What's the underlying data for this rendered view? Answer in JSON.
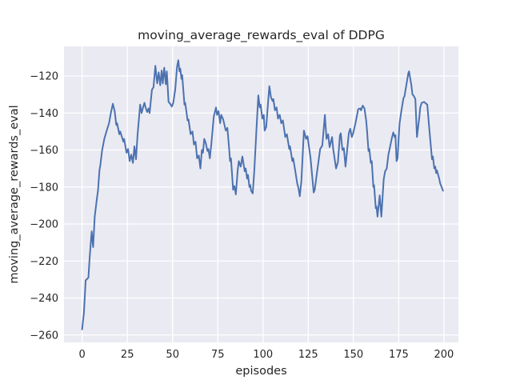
{
  "figure": {
    "background": "#ffffff",
    "plot_background": "#eaeaf2",
    "grid_color": "#ffffff",
    "text_color": "#262626"
  },
  "chart_data": {
    "type": "line",
    "title": "moving_average_rewards_eval of DDPG",
    "xlabel": "episodes",
    "ylabel": "moving_average_rewards_eval",
    "legend": null,
    "grid": true,
    "xlim": [
      -10,
      208
    ],
    "ylim": [
      -264,
      -104
    ],
    "x_ticks": [
      0,
      25,
      50,
      75,
      100,
      125,
      150,
      175,
      200
    ],
    "x_tick_labels": [
      "0",
      "25",
      "50",
      "75",
      "100",
      "125",
      "150",
      "175",
      "200"
    ],
    "y_ticks": [
      -120,
      -140,
      -160,
      -180,
      -200,
      -220,
      -240,
      -260
    ],
    "y_tick_labels": [
      "−120",
      "−140",
      "−160",
      "−180",
      "−200",
      "−220",
      "−240",
      "−260"
    ],
    "series": [
      {
        "name": "moving_average_rewards_eval",
        "color": "#4c72b0",
        "points": [
          [
            0,
            -257
          ],
          [
            1,
            -248
          ],
          [
            2,
            -230.5
          ],
          [
            3.5,
            -229
          ],
          [
            4.2,
            -218
          ],
          [
            5.3,
            -204
          ],
          [
            6.1,
            -212.5
          ],
          [
            7,
            -196
          ],
          [
            8.2,
            -186
          ],
          [
            8.8,
            -182
          ],
          [
            9.6,
            -171
          ],
          [
            10.1,
            -168
          ],
          [
            11,
            -160.5
          ],
          [
            12.3,
            -154
          ],
          [
            13.6,
            -149.5
          ],
          [
            14.9,
            -145.5
          ],
          [
            16,
            -139.5
          ],
          [
            17,
            -135
          ],
          [
            18,
            -139
          ],
          [
            18.9,
            -146.5
          ],
          [
            19.3,
            -145.5
          ],
          [
            20.6,
            -151.5
          ],
          [
            21.1,
            -150
          ],
          [
            22.8,
            -155.5
          ],
          [
            23.2,
            -154
          ],
          [
            24.6,
            -161.5
          ],
          [
            25.4,
            -159.5
          ],
          [
            26.3,
            -166
          ],
          [
            27.2,
            -162.5
          ],
          [
            28.1,
            -167
          ],
          [
            28.9,
            -158
          ],
          [
            29.8,
            -165
          ],
          [
            30.7,
            -151.5
          ],
          [
            31.6,
            -141
          ],
          [
            32.1,
            -135.5
          ],
          [
            32.9,
            -140
          ],
          [
            33.8,
            -136.5
          ],
          [
            34.5,
            -134.5
          ],
          [
            35.1,
            -137
          ],
          [
            36,
            -139.5
          ],
          [
            36.8,
            -137.5
          ],
          [
            37.3,
            -140
          ],
          [
            38.6,
            -127.5
          ],
          [
            39.5,
            -126
          ],
          [
            40.5,
            -114.5
          ],
          [
            41.5,
            -124
          ],
          [
            42.3,
            -118
          ],
          [
            43.2,
            -125
          ],
          [
            44,
            -117
          ],
          [
            44.6,
            -124
          ],
          [
            45.4,
            -115.5
          ],
          [
            46.3,
            -124.5
          ],
          [
            46.8,
            -117.5
          ],
          [
            47.8,
            -134
          ],
          [
            48.7,
            -135
          ],
          [
            49.6,
            -136.5
          ],
          [
            50.4,
            -134.5
          ],
          [
            51.5,
            -127
          ],
          [
            52.5,
            -115
          ],
          [
            53.2,
            -111.5
          ],
          [
            53.8,
            -117.5
          ],
          [
            54.3,
            -116
          ],
          [
            54.9,
            -121.5
          ],
          [
            55.3,
            -119.5
          ],
          [
            56.6,
            -135.5
          ],
          [
            57,
            -134.5
          ],
          [
            58.3,
            -144
          ],
          [
            58.8,
            -143.5
          ],
          [
            60,
            -151.5
          ],
          [
            61,
            -150
          ],
          [
            61.8,
            -157
          ],
          [
            62.7,
            -155.5
          ],
          [
            63.6,
            -164.5
          ],
          [
            64.5,
            -163
          ],
          [
            65.4,
            -170
          ],
          [
            66.2,
            -160
          ],
          [
            66.8,
            -161.5
          ],
          [
            67.5,
            -154
          ],
          [
            68.3,
            -156
          ],
          [
            69.3,
            -160.5
          ],
          [
            69.8,
            -159.5
          ],
          [
            70.6,
            -164.5
          ],
          [
            71.5,
            -156
          ],
          [
            72.8,
            -142
          ],
          [
            74,
            -137
          ],
          [
            74.6,
            -141
          ],
          [
            75.4,
            -139
          ],
          [
            76.3,
            -145.5
          ],
          [
            76.9,
            -141
          ],
          [
            78,
            -143.5
          ],
          [
            79.4,
            -149.5
          ],
          [
            80.3,
            -148
          ],
          [
            81.2,
            -158
          ],
          [
            81.8,
            -166
          ],
          [
            82.3,
            -164.5
          ],
          [
            83.5,
            -181.5
          ],
          [
            84.2,
            -179.5
          ],
          [
            85,
            -184
          ],
          [
            86,
            -171
          ],
          [
            86.6,
            -166
          ],
          [
            87.7,
            -169
          ],
          [
            88.6,
            -163.5
          ],
          [
            89.9,
            -171.5
          ],
          [
            90.4,
            -170
          ],
          [
            91.2,
            -175.5
          ],
          [
            91.7,
            -173.5
          ],
          [
            92.5,
            -180
          ],
          [
            93,
            -179
          ],
          [
            93.4,
            -182
          ],
          [
            94.3,
            -183.5
          ],
          [
            95.2,
            -171
          ],
          [
            96.5,
            -147
          ],
          [
            97.4,
            -130.5
          ],
          [
            98.2,
            -137
          ],
          [
            98.7,
            -135.5
          ],
          [
            99.6,
            -143
          ],
          [
            100.4,
            -141
          ],
          [
            100.9,
            -149.5
          ],
          [
            101.8,
            -147.5
          ],
          [
            102.6,
            -137
          ],
          [
            103.5,
            -125.5
          ],
          [
            104.4,
            -131.5
          ],
          [
            105.3,
            -133.5
          ],
          [
            105.7,
            -132.5
          ],
          [
            106.6,
            -138.5
          ],
          [
            107.5,
            -137
          ],
          [
            108.3,
            -143
          ],
          [
            109.2,
            -141
          ],
          [
            110.1,
            -145.5
          ],
          [
            111,
            -144
          ],
          [
            112.3,
            -153
          ],
          [
            113.2,
            -151.5
          ],
          [
            114.5,
            -159.5
          ],
          [
            114.9,
            -158
          ],
          [
            116.2,
            -166
          ],
          [
            116.7,
            -164.5
          ],
          [
            118,
            -172.5
          ],
          [
            118.9,
            -178
          ],
          [
            119.7,
            -181
          ],
          [
            120.3,
            -185
          ],
          [
            121.2,
            -177
          ],
          [
            122.6,
            -149.5
          ],
          [
            123.8,
            -154
          ],
          [
            124.6,
            -152.5
          ],
          [
            126.3,
            -164.5
          ],
          [
            128,
            -183
          ],
          [
            128.6,
            -181.5
          ],
          [
            130,
            -171
          ],
          [
            131.6,
            -159.5
          ],
          [
            132.8,
            -157.5
          ],
          [
            134.2,
            -141
          ],
          [
            135.1,
            -154
          ],
          [
            136,
            -151.5
          ],
          [
            136.8,
            -158.5
          ],
          [
            138.2,
            -153
          ],
          [
            138.8,
            -159.5
          ],
          [
            140.4,
            -170
          ],
          [
            141.4,
            -166.5
          ],
          [
            142.5,
            -152
          ],
          [
            143,
            -151
          ],
          [
            143.9,
            -160
          ],
          [
            144.7,
            -159
          ],
          [
            145.6,
            -169
          ],
          [
            147.4,
            -151
          ],
          [
            148.2,
            -148.5
          ],
          [
            149.1,
            -153
          ],
          [
            149.8,
            -151
          ],
          [
            151,
            -146
          ],
          [
            152,
            -141
          ],
          [
            152.6,
            -138
          ],
          [
            153.7,
            -137.5
          ],
          [
            154.2,
            -138.5
          ],
          [
            155.1,
            -136
          ],
          [
            156.1,
            -137.5
          ],
          [
            157,
            -144
          ],
          [
            157.5,
            -149.5
          ],
          [
            158.3,
            -160.5
          ],
          [
            158.8,
            -159.5
          ],
          [
            159.6,
            -167
          ],
          [
            160.1,
            -166
          ],
          [
            161,
            -180
          ],
          [
            161.4,
            -179
          ],
          [
            162.3,
            -191.5
          ],
          [
            162.7,
            -190.5
          ],
          [
            163.3,
            -196
          ],
          [
            164.5,
            -184.5
          ],
          [
            165.4,
            -196
          ],
          [
            166.7,
            -176
          ],
          [
            167.5,
            -171.5
          ],
          [
            168.4,
            -170
          ],
          [
            169.3,
            -162.5
          ],
          [
            170.2,
            -158.5
          ],
          [
            171.1,
            -154
          ],
          [
            172,
            -150.5
          ],
          [
            172.8,
            -153
          ],
          [
            173.2,
            -152
          ],
          [
            173.8,
            -166
          ],
          [
            174.4,
            -164.5
          ],
          [
            175.1,
            -151.5
          ],
          [
            175.5,
            -145.5
          ],
          [
            176.3,
            -140
          ],
          [
            177.6,
            -132
          ],
          [
            178.2,
            -131
          ],
          [
            180.3,
            -118.5
          ],
          [
            180.7,
            -117.5
          ],
          [
            182,
            -125
          ],
          [
            182.6,
            -130
          ],
          [
            183.2,
            -130.5
          ],
          [
            184.2,
            -132.5
          ],
          [
            185.1,
            -153
          ],
          [
            186.4,
            -142
          ],
          [
            186.9,
            -137
          ],
          [
            187.7,
            -134.5
          ],
          [
            189,
            -134
          ],
          [
            190.8,
            -135.5
          ],
          [
            192.1,
            -150.5
          ],
          [
            193,
            -160.5
          ],
          [
            193.4,
            -165
          ],
          [
            193.9,
            -163.5
          ],
          [
            194.7,
            -170
          ],
          [
            195.2,
            -169
          ],
          [
            195.7,
            -172.5
          ],
          [
            196.1,
            -171
          ],
          [
            197.4,
            -175.5
          ],
          [
            197.9,
            -178
          ],
          [
            199.5,
            -182
          ]
        ]
      }
    ]
  }
}
